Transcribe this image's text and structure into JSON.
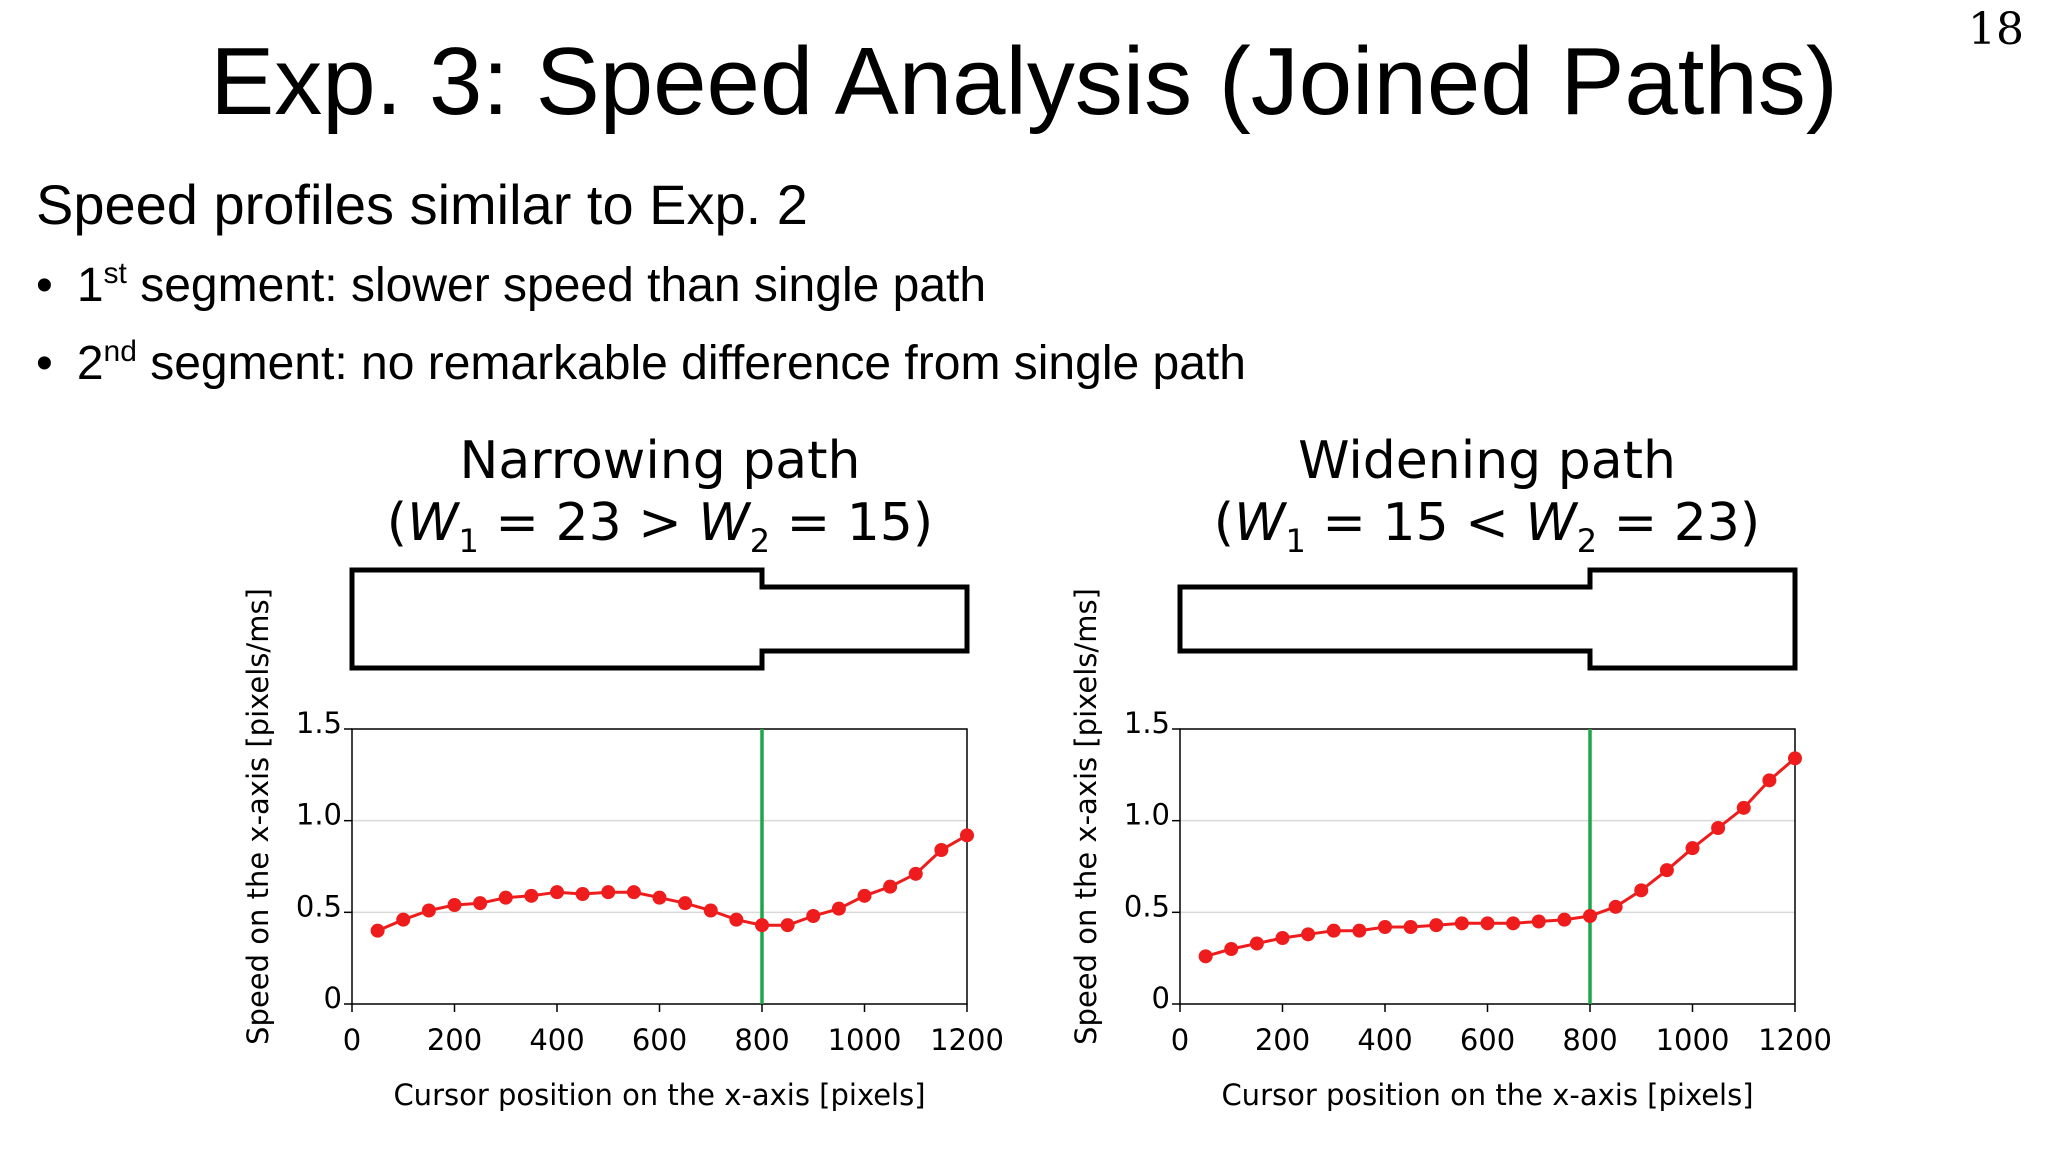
{
  "slide": {
    "number": "18",
    "title": "Exp. 3: Speed Analysis (Joined Paths)",
    "intro": "Speed profiles similar to Exp. 2",
    "bullets": [
      {
        "ordinal": "1",
        "suffix": "st",
        "text": " segment: slower speed than single path"
      },
      {
        "ordinal": "2",
        "suffix": "nd",
        "text": " segment: no remarkable difference from single path"
      }
    ]
  },
  "colors": {
    "series": "#ee1c1c",
    "boundary": "#1fa64a",
    "grid": "#d9d9d9",
    "frame": "#000000"
  },
  "chart_data": [
    {
      "type": "line",
      "title": "Narrowing path",
      "subtitle": {
        "open": "(",
        "w1": "W",
        "sub1": "1",
        "mid": " = 23 > ",
        "w2": "W",
        "sub2": "2",
        "end": " = 15)"
      },
      "shape": {
        "w1": 23,
        "w2": 15,
        "junction": 800
      },
      "xlabel": "Cursor position on the x-axis [pixels]",
      "ylabel": "Speed on the x-axis [pixels/ms]",
      "xlim": [
        0,
        1200
      ],
      "ylim": [
        0,
        1.5
      ],
      "xticks": [
        0,
        200,
        400,
        600,
        800,
        1000,
        1200
      ],
      "yticks": [
        0,
        0.5,
        1.0,
        1.5
      ],
      "ytick_labels": [
        "0",
        "0.5",
        "1.0",
        "1.5"
      ],
      "boundary_x": 800,
      "grid": true,
      "x": [
        50,
        100,
        150,
        200,
        250,
        300,
        350,
        400,
        450,
        500,
        550,
        600,
        650,
        700,
        750,
        800,
        850,
        900,
        950,
        1000,
        1050,
        1100,
        1150,
        1200
      ],
      "y": [
        0.4,
        0.46,
        0.51,
        0.54,
        0.55,
        0.58,
        0.59,
        0.61,
        0.6,
        0.61,
        0.61,
        0.58,
        0.55,
        0.51,
        0.46,
        0.43,
        0.43,
        0.48,
        0.52,
        0.59,
        0.64,
        0.71,
        0.84,
        0.92
      ]
    },
    {
      "type": "line",
      "title": "Widening path",
      "subtitle": {
        "open": "(",
        "w1": "W",
        "sub1": "1",
        "mid": " = 15 < ",
        "w2": "W",
        "sub2": "2",
        "end": " = 23)"
      },
      "shape": {
        "w1": 15,
        "w2": 23,
        "junction": 800
      },
      "xlabel": "Cursor position on the x-axis [pixels]",
      "ylabel": "Speed on the x-axis [pixels/ms]",
      "xlim": [
        0,
        1200
      ],
      "ylim": [
        0,
        1.5
      ],
      "xticks": [
        0,
        200,
        400,
        600,
        800,
        1000,
        1200
      ],
      "yticks": [
        0,
        0.5,
        1.0,
        1.5
      ],
      "ytick_labels": [
        "0",
        "0.5",
        "1.0",
        "1.5"
      ],
      "boundary_x": 800,
      "grid": true,
      "x": [
        50,
        100,
        150,
        200,
        250,
        300,
        350,
        400,
        450,
        500,
        550,
        600,
        650,
        700,
        750,
        800,
        850,
        900,
        950,
        1000,
        1050,
        1100,
        1150,
        1200
      ],
      "y": [
        0.26,
        0.3,
        0.33,
        0.36,
        0.38,
        0.4,
        0.4,
        0.42,
        0.42,
        0.43,
        0.44,
        0.44,
        0.44,
        0.45,
        0.46,
        0.48,
        0.53,
        0.62,
        0.73,
        0.85,
        0.96,
        1.07,
        1.22,
        1.34
      ]
    }
  ]
}
